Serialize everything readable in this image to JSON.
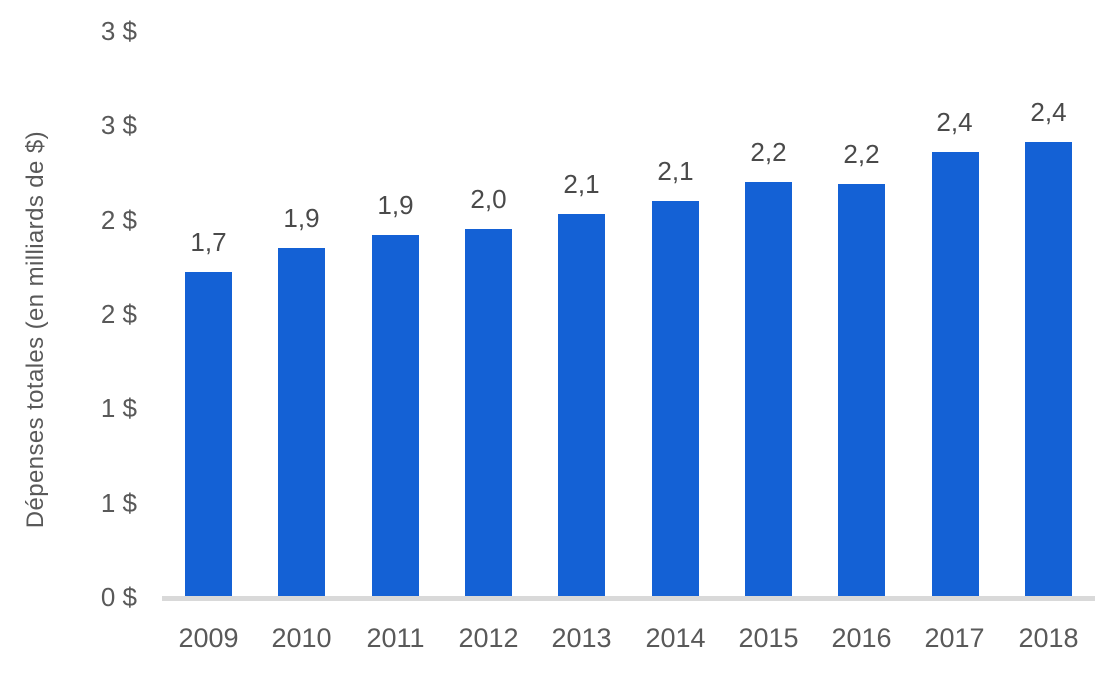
{
  "chart_data": {
    "type": "bar",
    "title": "",
    "xlabel": "",
    "ylabel": "Dépenses totales (en milliards de $)",
    "categories": [
      "2009",
      "2010",
      "2011",
      "2012",
      "2013",
      "2014",
      "2015",
      "2016",
      "2017",
      "2018"
    ],
    "values": [
      1.7,
      1.9,
      1.9,
      2.0,
      2.1,
      2.1,
      2.2,
      2.2,
      2.4,
      2.4
    ],
    "bar_labels": [
      "1,7",
      "1,9",
      "1,9",
      "2,0",
      "2,1",
      "2,1",
      "2,2",
      "2,2",
      "2,4",
      "2,4"
    ],
    "values_render_est": [
      1.72,
      1.85,
      1.92,
      1.95,
      2.03,
      2.1,
      2.2,
      2.19,
      2.36,
      2.41
    ],
    "ylim": [
      0,
      3
    ],
    "y_ticks": [
      {
        "value": 0,
        "label": "0 $"
      },
      {
        "value": 0.5,
        "label": "1 $"
      },
      {
        "value": 1,
        "label": "1 $"
      },
      {
        "value": 1.5,
        "label": "2 $"
      },
      {
        "value": 2,
        "label": "2 $"
      },
      {
        "value": 2.5,
        "label": "3 $"
      },
      {
        "value": 3,
        "label": "3 $"
      }
    ],
    "grid": false,
    "legend": "none",
    "colors": {
      "bar": "#1461d5",
      "axis_line": "#d9d9d9",
      "tick_text": "#595959",
      "data_label_text": "#4a4a4a",
      "background": "#ffffff"
    }
  }
}
